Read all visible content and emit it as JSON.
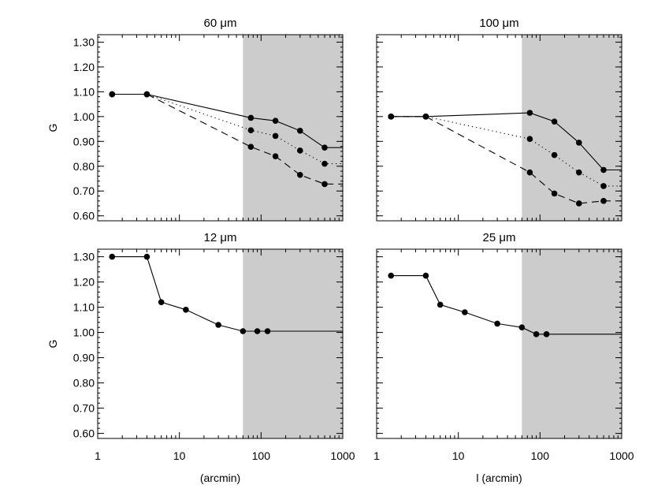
{
  "chart_data": [
    {
      "type": "line",
      "title": "60 μm",
      "xlabel": "",
      "ylabel": "G",
      "xscale": "log",
      "xlim": [
        1,
        1000
      ],
      "ylim": [
        0.58,
        1.33
      ],
      "xticks": [
        1,
        10,
        100,
        1000
      ],
      "yticks": [
        0.6,
        0.7,
        0.8,
        0.9,
        1.0,
        1.1,
        1.2,
        1.3
      ],
      "yticklabels": [
        "0.60",
        "0.70",
        "0.80",
        "0.90",
        "1.00",
        "1.10",
        "1.20",
        "1.30"
      ],
      "xticklabels": [],
      "shaded_region": [
        60,
        1000
      ],
      "series": [
        {
          "style": "solid",
          "points": [
            [
              1.5,
              1.09
            ],
            [
              4,
              1.09
            ],
            [
              75,
              0.995
            ],
            [
              150,
              0.983
            ],
            [
              300,
              0.943
            ],
            [
              600,
              0.875
            ]
          ],
          "extend_to": 1000
        },
        {
          "style": "dotted",
          "points": [
            [
              1.5,
              1.09
            ],
            [
              4,
              1.09
            ],
            [
              75,
              0.945
            ],
            [
              150,
              0.922
            ],
            [
              300,
              0.863
            ],
            [
              600,
              0.81
            ]
          ],
          "extend_to": 1000
        },
        {
          "style": "dashed",
          "points": [
            [
              1.5,
              1.09
            ],
            [
              4,
              1.09
            ],
            [
              75,
              0.878
            ],
            [
              150,
              0.84
            ],
            [
              300,
              0.765
            ],
            [
              600,
              0.728
            ]
          ],
          "extend_to": 1000
        }
      ]
    },
    {
      "type": "line",
      "title": "100 μm",
      "xlabel": "",
      "ylabel": "",
      "xscale": "log",
      "xlim": [
        1,
        1000
      ],
      "ylim": [
        0.58,
        1.33
      ],
      "xticks": [
        1,
        10,
        100,
        1000
      ],
      "yticks": [
        0.6,
        0.7,
        0.8,
        0.9,
        1.0,
        1.1,
        1.2,
        1.3
      ],
      "yticklabels": [],
      "xticklabels": [],
      "shaded_region": [
        60,
        1000
      ],
      "series": [
        {
          "style": "solid",
          "points": [
            [
              1.5,
              1.0
            ],
            [
              4,
              1.0
            ],
            [
              75,
              1.015
            ],
            [
              150,
              0.98
            ],
            [
              300,
              0.895
            ],
            [
              600,
              0.785
            ]
          ],
          "extend_to": 1000
        },
        {
          "style": "dotted",
          "points": [
            [
              1.5,
              1.0
            ],
            [
              4,
              1.0
            ],
            [
              75,
              0.91
            ],
            [
              150,
              0.845
            ],
            [
              300,
              0.775
            ],
            [
              600,
              0.72
            ]
          ],
          "extend_to": 1000
        },
        {
          "style": "dashed",
          "points": [
            [
              1.5,
              1.0
            ],
            [
              4,
              1.0
            ],
            [
              75,
              0.775
            ],
            [
              150,
              0.69
            ],
            [
              300,
              0.65
            ],
            [
              600,
              0.66
            ]
          ],
          "extend_to": 1000
        }
      ]
    },
    {
      "type": "line",
      "title": "12 μm",
      "xlabel": "(arcmin)",
      "ylabel": "G",
      "xscale": "log",
      "xlim": [
        1,
        1000
      ],
      "ylim": [
        0.58,
        1.33
      ],
      "xticks": [
        1,
        10,
        100,
        1000
      ],
      "yticks": [
        0.6,
        0.7,
        0.8,
        0.9,
        1.0,
        1.1,
        1.2,
        1.3
      ],
      "yticklabels": [
        "0.60",
        "0.70",
        "0.80",
        "0.90",
        "1.00",
        "1.10",
        "1.20",
        "1.30"
      ],
      "xticklabels": [
        "1",
        "10",
        "100",
        "1000"
      ],
      "shaded_region": [
        60,
        1000
      ],
      "series": [
        {
          "style": "solid",
          "points": [
            [
              1.5,
              1.3
            ],
            [
              4,
              1.3
            ],
            [
              6,
              1.12
            ],
            [
              12,
              1.09
            ],
            [
              30,
              1.03
            ],
            [
              60,
              1.005
            ],
            [
              90,
              1.005
            ],
            [
              120,
              1.005
            ]
          ],
          "extend_to": 1000
        }
      ]
    },
    {
      "type": "line",
      "title": "25 μm",
      "xlabel": "l (arcmin)",
      "ylabel": "",
      "xscale": "log",
      "xlim": [
        1,
        1000
      ],
      "ylim": [
        0.58,
        1.33
      ],
      "xticks": [
        1,
        10,
        100,
        1000
      ],
      "yticks": [
        0.6,
        0.7,
        0.8,
        0.9,
        1.0,
        1.1,
        1.2,
        1.3
      ],
      "yticklabels": [],
      "xticklabels": [
        "1",
        "10",
        "100",
        "1000"
      ],
      "shaded_region": [
        60,
        1000
      ],
      "series": [
        {
          "style": "solid",
          "points": [
            [
              1.5,
              1.225
            ],
            [
              4,
              1.225
            ],
            [
              6,
              1.11
            ],
            [
              12,
              1.08
            ],
            [
              30,
              1.035
            ],
            [
              60,
              1.02
            ],
            [
              90,
              0.993
            ],
            [
              120,
              0.993
            ]
          ],
          "extend_to": 1000
        }
      ]
    }
  ]
}
